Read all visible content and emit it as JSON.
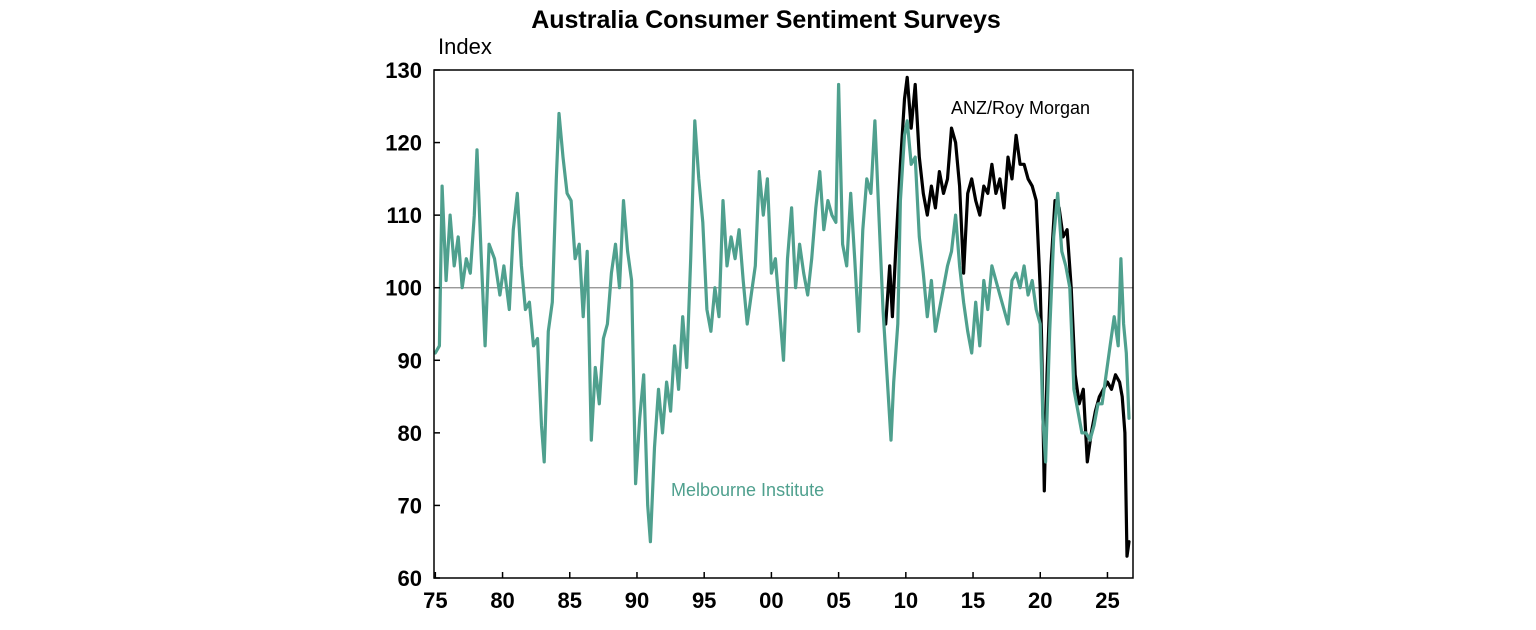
{
  "chart_data": {
    "type": "line",
    "title": "Australia Consumer Sentiment Surveys",
    "ylabel": "Index",
    "xlabel": "",
    "xlim": [
      1974.9,
      2026.9
    ],
    "ylim": [
      60,
      130
    ],
    "y_ticks": [
      60,
      70,
      80,
      90,
      100,
      110,
      120,
      130
    ],
    "x_ticks": [
      {
        "value": 1975,
        "label": "75"
      },
      {
        "value": 1980,
        "label": "80"
      },
      {
        "value": 1985,
        "label": "85"
      },
      {
        "value": 1990,
        "label": "90"
      },
      {
        "value": 1995,
        "label": "95"
      },
      {
        "value": 2000,
        "label": "00"
      },
      {
        "value": 2005,
        "label": "05"
      },
      {
        "value": 2010,
        "label": "10"
      },
      {
        "value": 2015,
        "label": "15"
      },
      {
        "value": 2020,
        "label": "20"
      },
      {
        "value": 2025,
        "label": "25"
      }
    ],
    "reference_line": 100,
    "grid": false,
    "series": [
      {
        "name": "Melbourne Institute",
        "color": "#4fa08e",
        "points": [
          [
            1975.0,
            91
          ],
          [
            1975.3,
            92
          ],
          [
            1975.5,
            114
          ],
          [
            1975.8,
            101
          ],
          [
            1976.1,
            110
          ],
          [
            1976.4,
            103
          ],
          [
            1976.7,
            107
          ],
          [
            1977.0,
            100
          ],
          [
            1977.3,
            104
          ],
          [
            1977.6,
            102
          ],
          [
            1977.9,
            110
          ],
          [
            1978.1,
            119
          ],
          [
            1978.4,
            105
          ],
          [
            1978.7,
            92
          ],
          [
            1979.0,
            106
          ],
          [
            1979.4,
            104
          ],
          [
            1979.8,
            99
          ],
          [
            1980.1,
            103
          ],
          [
            1980.5,
            97
          ],
          [
            1980.8,
            108
          ],
          [
            1981.1,
            113
          ],
          [
            1981.4,
            103
          ],
          [
            1981.7,
            97
          ],
          [
            1982.0,
            98
          ],
          [
            1982.3,
            92
          ],
          [
            1982.6,
            93
          ],
          [
            1982.9,
            81
          ],
          [
            1983.1,
            76
          ],
          [
            1983.4,
            94
          ],
          [
            1983.7,
            98
          ],
          [
            1984.0,
            115
          ],
          [
            1984.2,
            124
          ],
          [
            1984.5,
            118
          ],
          [
            1984.8,
            113
          ],
          [
            1985.1,
            112
          ],
          [
            1985.4,
            104
          ],
          [
            1985.7,
            106
          ],
          [
            1986.0,
            96
          ],
          [
            1986.3,
            105
          ],
          [
            1986.6,
            79
          ],
          [
            1986.9,
            89
          ],
          [
            1987.2,
            84
          ],
          [
            1987.5,
            93
          ],
          [
            1987.8,
            95
          ],
          [
            1988.1,
            102
          ],
          [
            1988.4,
            106
          ],
          [
            1988.7,
            100
          ],
          [
            1989.0,
            112
          ],
          [
            1989.3,
            105
          ],
          [
            1989.6,
            101
          ],
          [
            1989.9,
            73
          ],
          [
            1990.2,
            82
          ],
          [
            1990.5,
            88
          ],
          [
            1990.8,
            70
          ],
          [
            1991.0,
            65
          ],
          [
            1991.3,
            78
          ],
          [
            1991.6,
            86
          ],
          [
            1991.9,
            80
          ],
          [
            1992.2,
            87
          ],
          [
            1992.5,
            83
          ],
          [
            1992.8,
            92
          ],
          [
            1993.1,
            86
          ],
          [
            1993.4,
            96
          ],
          [
            1993.7,
            89
          ],
          [
            1994.0,
            104
          ],
          [
            1994.3,
            123
          ],
          [
            1994.6,
            115
          ],
          [
            1994.9,
            109
          ],
          [
            1995.2,
            97
          ],
          [
            1995.5,
            94
          ],
          [
            1995.8,
            100
          ],
          [
            1996.1,
            96
          ],
          [
            1996.4,
            112
          ],
          [
            1996.7,
            103
          ],
          [
            1997.0,
            107
          ],
          [
            1997.3,
            104
          ],
          [
            1997.6,
            108
          ],
          [
            1997.9,
            101
          ],
          [
            1998.2,
            95
          ],
          [
            1998.5,
            99
          ],
          [
            1998.8,
            103
          ],
          [
            1999.1,
            116
          ],
          [
            1999.4,
            110
          ],
          [
            1999.7,
            115
          ],
          [
            2000.0,
            102
          ],
          [
            2000.3,
            104
          ],
          [
            2000.6,
            97
          ],
          [
            2000.9,
            90
          ],
          [
            2001.2,
            104
          ],
          [
            2001.5,
            111
          ],
          [
            2001.8,
            100
          ],
          [
            2002.1,
            106
          ],
          [
            2002.4,
            102
          ],
          [
            2002.7,
            99
          ],
          [
            2003.0,
            104
          ],
          [
            2003.3,
            111
          ],
          [
            2003.6,
            116
          ],
          [
            2003.9,
            108
          ],
          [
            2004.2,
            112
          ],
          [
            2004.5,
            110
          ],
          [
            2004.8,
            109
          ],
          [
            2005.0,
            128
          ],
          [
            2005.3,
            106
          ],
          [
            2005.6,
            103
          ],
          [
            2005.9,
            113
          ],
          [
            2006.2,
            104
          ],
          [
            2006.5,
            94
          ],
          [
            2006.8,
            108
          ],
          [
            2007.1,
            115
          ],
          [
            2007.4,
            113
          ],
          [
            2007.7,
            123
          ],
          [
            2008.0,
            110
          ],
          [
            2008.3,
            97
          ],
          [
            2008.6,
            88
          ],
          [
            2008.9,
            79
          ],
          [
            2009.1,
            87
          ],
          [
            2009.4,
            95
          ],
          [
            2009.6,
            112
          ],
          [
            2009.9,
            121
          ],
          [
            2010.1,
            123
          ],
          [
            2010.4,
            117
          ],
          [
            2010.7,
            118
          ],
          [
            2011.0,
            107
          ],
          [
            2011.3,
            102
          ],
          [
            2011.6,
            96
          ],
          [
            2011.9,
            101
          ],
          [
            2012.2,
            94
          ],
          [
            2012.5,
            97
          ],
          [
            2012.8,
            100
          ],
          [
            2013.1,
            103
          ],
          [
            2013.4,
            105
          ],
          [
            2013.7,
            110
          ],
          [
            2014.0,
            103
          ],
          [
            2014.3,
            98
          ],
          [
            2014.6,
            94
          ],
          [
            2014.9,
            91
          ],
          [
            2015.2,
            98
          ],
          [
            2015.5,
            92
          ],
          [
            2015.8,
            101
          ],
          [
            2016.1,
            97
          ],
          [
            2016.4,
            103
          ],
          [
            2016.7,
            101
          ],
          [
            2017.0,
            99
          ],
          [
            2017.3,
            97
          ],
          [
            2017.6,
            95
          ],
          [
            2017.9,
            101
          ],
          [
            2018.2,
            102
          ],
          [
            2018.5,
            100
          ],
          [
            2018.8,
            103
          ],
          [
            2019.1,
            99
          ],
          [
            2019.4,
            101
          ],
          [
            2019.7,
            97
          ],
          [
            2020.0,
            95
          ],
          [
            2020.2,
            82
          ],
          [
            2020.4,
            76
          ],
          [
            2020.7,
            94
          ],
          [
            2021.0,
            107
          ],
          [
            2021.3,
            113
          ],
          [
            2021.6,
            105
          ],
          [
            2021.9,
            103
          ],
          [
            2022.2,
            100
          ],
          [
            2022.5,
            86
          ],
          [
            2022.8,
            83
          ],
          [
            2023.1,
            80
          ],
          [
            2023.4,
            80
          ],
          [
            2023.7,
            79
          ],
          [
            2024.0,
            81
          ],
          [
            2024.3,
            84
          ],
          [
            2024.6,
            84
          ],
          [
            2024.9,
            88
          ],
          [
            2025.2,
            92
          ],
          [
            2025.5,
            96
          ],
          [
            2025.8,
            92
          ],
          [
            2026.0,
            104
          ],
          [
            2026.2,
            95
          ],
          [
            2026.4,
            91
          ],
          [
            2026.6,
            82
          ]
        ]
      },
      {
        "name": "ANZ/Roy Morgan",
        "color": "#000000",
        "points": [
          [
            2008.5,
            95
          ],
          [
            2008.8,
            103
          ],
          [
            2009.0,
            96
          ],
          [
            2009.3,
            107
          ],
          [
            2009.6,
            117
          ],
          [
            2009.9,
            126
          ],
          [
            2010.1,
            129
          ],
          [
            2010.4,
            122
          ],
          [
            2010.7,
            128
          ],
          [
            2011.0,
            118
          ],
          [
            2011.3,
            113
          ],
          [
            2011.6,
            110
          ],
          [
            2011.9,
            114
          ],
          [
            2012.2,
            111
          ],
          [
            2012.5,
            116
          ],
          [
            2012.8,
            113
          ],
          [
            2013.1,
            115
          ],
          [
            2013.4,
            122
          ],
          [
            2013.7,
            120
          ],
          [
            2014.0,
            114
          ],
          [
            2014.3,
            102
          ],
          [
            2014.6,
            113
          ],
          [
            2014.9,
            115
          ],
          [
            2015.2,
            112
          ],
          [
            2015.5,
            110
          ],
          [
            2015.8,
            114
          ],
          [
            2016.1,
            113
          ],
          [
            2016.4,
            117
          ],
          [
            2016.7,
            113
          ],
          [
            2017.0,
            115
          ],
          [
            2017.3,
            111
          ],
          [
            2017.6,
            118
          ],
          [
            2017.9,
            115
          ],
          [
            2018.2,
            121
          ],
          [
            2018.5,
            117
          ],
          [
            2018.8,
            117
          ],
          [
            2019.1,
            115
          ],
          [
            2019.4,
            114
          ],
          [
            2019.7,
            112
          ],
          [
            2020.0,
            100
          ],
          [
            2020.1,
            93
          ],
          [
            2020.3,
            72
          ],
          [
            2020.5,
            88
          ],
          [
            2020.8,
            103
          ],
          [
            2021.1,
            112
          ],
          [
            2021.4,
            111
          ],
          [
            2021.7,
            107
          ],
          [
            2022.0,
            108
          ],
          [
            2022.3,
            100
          ],
          [
            2022.6,
            88
          ],
          [
            2022.9,
            84
          ],
          [
            2023.2,
            86
          ],
          [
            2023.5,
            76
          ],
          [
            2023.8,
            80
          ],
          [
            2024.1,
            83
          ],
          [
            2024.4,
            85
          ],
          [
            2024.7,
            86
          ],
          [
            2025.0,
            87
          ],
          [
            2025.3,
            86
          ],
          [
            2025.6,
            88
          ],
          [
            2025.9,
            87
          ],
          [
            2026.1,
            85
          ],
          [
            2026.3,
            80
          ],
          [
            2026.45,
            63
          ],
          [
            2026.6,
            65
          ]
        ]
      }
    ]
  }
}
